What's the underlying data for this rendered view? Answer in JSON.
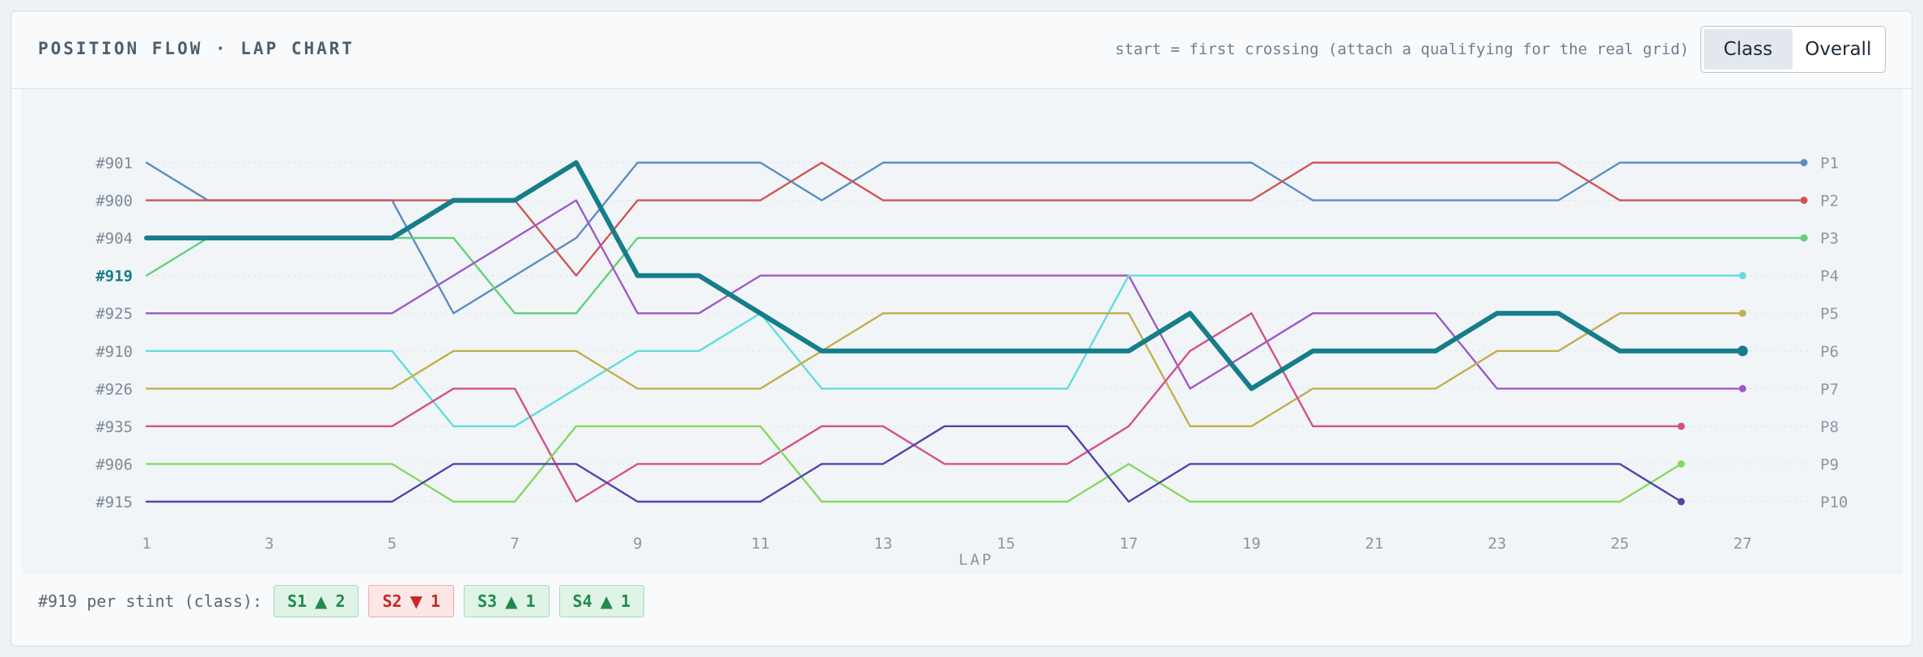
{
  "header": {
    "title": "POSITION FLOW · LAP CHART",
    "note": "start = first crossing (attach a qualifying for the real grid)",
    "toggle": {
      "options": [
        "Class",
        "Overall"
      ],
      "active": "Class"
    }
  },
  "chart_data": {
    "type": "line",
    "xlabel": "LAP",
    "x_ticks": [
      1,
      3,
      5,
      7,
      9,
      11,
      13,
      15,
      17,
      19,
      21,
      23,
      25,
      27
    ],
    "xlim": [
      1,
      28
    ],
    "y_left_labels": [
      "#901",
      "#900",
      "#904",
      "#919",
      "#925",
      "#910",
      "#926",
      "#935",
      "#906",
      "#915"
    ],
    "y_right_labels": [
      "P1",
      "P2",
      "P3",
      "P4",
      "P5",
      "P6",
      "P7",
      "P8",
      "P9",
      "P10"
    ],
    "highlight": "#919",
    "grid": "horizontal dotted",
    "series": [
      {
        "name": "#901",
        "color": "#5b8cc0",
        "positions": [
          1,
          2,
          2,
          2,
          2,
          5,
          4,
          3,
          1,
          1,
          1,
          2,
          1,
          1,
          1,
          1,
          1,
          1,
          1,
          2,
          2,
          2,
          2,
          2,
          1,
          1,
          1,
          1
        ]
      },
      {
        "name": "#900",
        "color": "#d05454",
        "positions": [
          2,
          2,
          2,
          2,
          2,
          2,
          2,
          4,
          2,
          2,
          2,
          1,
          2,
          2,
          2,
          2,
          2,
          2,
          2,
          1,
          1,
          1,
          1,
          1,
          2,
          2,
          2,
          2
        ]
      },
      {
        "name": "#904",
        "color": "#62d07a",
        "positions": [
          4,
          3,
          3,
          3,
          3,
          3,
          5,
          5,
          3,
          3,
          3,
          3,
          3,
          3,
          3,
          3,
          3,
          3,
          3,
          3,
          3,
          3,
          3,
          3,
          3,
          3,
          3,
          3
        ]
      },
      {
        "name": "#919",
        "color": "#167d8a",
        "positions": [
          3,
          3,
          3,
          3,
          3,
          2,
          2,
          1,
          4,
          4,
          5,
          6,
          6,
          6,
          6,
          6,
          6,
          5,
          7,
          6,
          6,
          6,
          5,
          5,
          6,
          6,
          6
        ]
      },
      {
        "name": "#925",
        "color": "#a058c8",
        "positions": [
          5,
          5,
          5,
          5,
          5,
          4,
          3,
          2,
          5,
          5,
          4,
          4,
          4,
          4,
          4,
          4,
          4,
          7,
          6,
          5,
          5,
          5,
          7,
          7,
          7,
          7,
          7
        ]
      },
      {
        "name": "#910",
        "color": "#62dcdc",
        "positions": [
          6,
          6,
          6,
          6,
          6,
          8,
          8,
          7,
          6,
          6,
          5,
          7,
          7,
          7,
          7,
          7,
          4,
          4,
          4,
          4,
          4,
          4,
          4,
          4,
          4,
          4,
          4
        ]
      },
      {
        "name": "#926",
        "color": "#c2b04a",
        "positions": [
          7,
          7,
          7,
          7,
          7,
          6,
          6,
          6,
          7,
          7,
          7,
          6,
          5,
          5,
          5,
          5,
          5,
          8,
          8,
          7,
          7,
          7,
          6,
          6,
          5,
          5,
          5
        ]
      },
      {
        "name": "#935",
        "color": "#d4508e",
        "positions": [
          8,
          8,
          8,
          8,
          8,
          7,
          7,
          10,
          9,
          9,
          9,
          8,
          8,
          9,
          9,
          9,
          8,
          6,
          5,
          8,
          8,
          8,
          8,
          8,
          8,
          8
        ]
      },
      {
        "name": "#906",
        "color": "#86d85e",
        "positions": [
          9,
          9,
          9,
          9,
          9,
          10,
          10,
          8,
          8,
          8,
          8,
          10,
          10,
          10,
          10,
          10,
          9,
          10,
          10,
          10,
          10,
          10,
          10,
          10,
          10,
          9
        ]
      },
      {
        "name": "#915",
        "color": "#4f44ac",
        "positions": [
          10,
          10,
          10,
          10,
          10,
          9,
          9,
          9,
          10,
          10,
          10,
          9,
          9,
          8,
          8,
          8,
          10,
          9,
          9,
          9,
          9,
          9,
          9,
          9,
          9,
          10
        ]
      }
    ]
  },
  "stints": {
    "label": "#919 per stint (class):",
    "chips": [
      {
        "name": "S1",
        "arrow": "▲",
        "change": "2",
        "dir": "up"
      },
      {
        "name": "S2",
        "arrow": "▼",
        "change": "1",
        "dir": "down"
      },
      {
        "name": "S3",
        "arrow": "▲",
        "change": "1",
        "dir": "up"
      },
      {
        "name": "S4",
        "arrow": "▲",
        "change": "1",
        "dir": "up"
      }
    ]
  }
}
